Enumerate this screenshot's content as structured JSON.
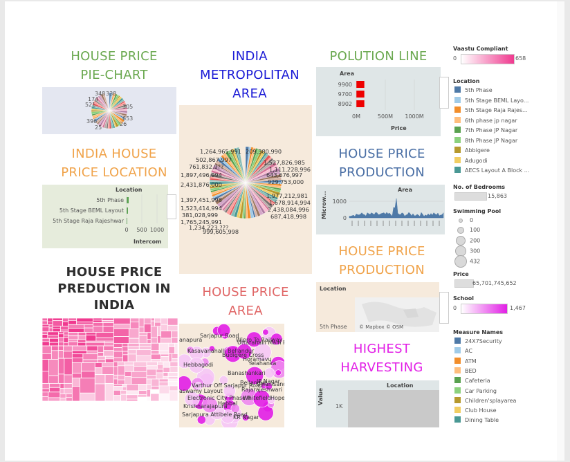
{
  "titles": {
    "pie": [
      "HOUSE PRICE",
      "PIE-CHART"
    ],
    "metro": [
      "INDIA",
      "METROPOLITAN",
      "AREA"
    ],
    "pollution": [
      "POLUTION LINE"
    ],
    "location": [
      "INDIA HOUSE",
      "PRICE LOCATION"
    ],
    "production1": [
      "HOUSE PRICE",
      "PRODUCTION"
    ],
    "production2": [
      "HOUSE PRICE",
      "PRODUCTION"
    ],
    "prediction": [
      "HOUSE PRICE",
      "PREDUCTION IN",
      "INDIA"
    ],
    "area": [
      "HOUSE PRICE",
      "AREA"
    ],
    "harvesting": [
      "HIGHEST",
      "HARVESTING"
    ]
  },
  "colors": {
    "title_green": "#6aa84f",
    "title_blue": "#1b1bd6",
    "title_orange": "#f0a34a",
    "title_steel": "#4a6fa5",
    "title_red": "#e06666",
    "title_magenta": "#e21ee6",
    "title_black": "#2d2d2d",
    "pink": "#f0398f",
    "magenta": "#e21ee6"
  },
  "small_pie": {
    "labels": [
      "348",
      "338",
      "174",
      "521",
      "305",
      "653",
      "396",
      "25",
      "26"
    ]
  },
  "metro_pie": {
    "labels": [
      "1,264,965,991",
      "502,867,997",
      "761,832,9??",
      "1,897,496,994",
      "2,431,876,000",
      "209,380,990",
      "1,527,826,985",
      "1,111,228,996",
      "643,676,997",
      "929,753,000",
      "1,977,212,981",
      "1,678,914,994",
      "2,438,084,996",
      "687,418,998",
      "1,397,451,998",
      "1,523,414,994",
      "381,028,999",
      "1,765,245,991",
      "1,234,223,???",
      "999,605,998"
    ]
  },
  "pollution": {
    "header": "Area",
    "rows": [
      "9900",
      "9700",
      "8902"
    ],
    "axis": [
      "0M",
      "500M",
      "1000M"
    ],
    "axis_title": "Price"
  },
  "location_chart": {
    "header": "Location",
    "rows": [
      "5th Phase",
      "5th Stage BEML Layout",
      "5th Stage Raja Rajeshwar"
    ],
    "axis": [
      "0",
      "500",
      "1000"
    ],
    "axis_title": "Intercom"
  },
  "production1": {
    "header": "Area",
    "y_label": "Microw...",
    "ticks": [
      "1000",
      "0"
    ]
  },
  "production2": {
    "header": "Location",
    "row": "5th Phase",
    "credit": "© Mapbox © OSM"
  },
  "area_bubbles": {
    "labels": [
      "Sarjapur Road",
      "Wipro To Railway Co",
      "anapura",
      "Uttarahalli Main Road",
      "Kasavanahalli",
      "Bellandur",
      "Budigere Cross",
      "Horamavu",
      "Yelahanka",
      "Hebbagodi",
      "Banashankari",
      "JP Nagar",
      "Varthur Off Sarjapur Road",
      "Bellandur",
      "Thanisandra",
      "Rajarajeshwari nagar",
      "Electronic City Phase II",
      "Whitefield",
      "Hope Farm",
      "Krishnarajapura",
      "Hebbal",
      "Sarjapura Attibele Road",
      "KR Nagar",
      "aswamy Layout"
    ]
  },
  "harvesting": {
    "header": "Location",
    "y_label": "Value",
    "tick": "1K"
  },
  "legends": {
    "vaastu": {
      "title": "Vaastu Compliant",
      "min": "0",
      "max": "658"
    },
    "location": {
      "title": "Location",
      "items": [
        {
          "label": "5th Phase",
          "color": "#4e79a7"
        },
        {
          "label": "5th Stage BEML Layo...",
          "color": "#a0cbe8"
        },
        {
          "label": "5th Stage Raja Rajes...",
          "color": "#f28e2b"
        },
        {
          "label": "6th phase jp nagar",
          "color": "#ffbe7d"
        },
        {
          "label": "7th Phase JP Nagar",
          "color": "#59a14f"
        },
        {
          "label": "8th Phase JP Nagar",
          "color": "#8cd17d"
        },
        {
          "label": "Abbigere",
          "color": "#b6992d"
        },
        {
          "label": "Adugodi",
          "color": "#f1ce63"
        },
        {
          "label": "AECS Layout A Block ...",
          "color": "#499894"
        }
      ]
    },
    "bedrooms": {
      "title": "No. of Bedrooms",
      "value": "15,863"
    },
    "pool": {
      "title": "Swimming Pool",
      "items": [
        "0",
        "100",
        "200",
        "300",
        "432"
      ]
    },
    "price": {
      "title": "Price",
      "value": "65,701,745,652"
    },
    "school": {
      "title": "School",
      "min": "0",
      "max": "1,467"
    },
    "measures": {
      "title": "Measure Names",
      "items": [
        {
          "label": "24X7Security",
          "color": "#4e79a7"
        },
        {
          "label": "AC",
          "color": "#a0cbe8"
        },
        {
          "label": "ATM",
          "color": "#f28e2b"
        },
        {
          "label": "BED",
          "color": "#ffbe7d"
        },
        {
          "label": "Cafeteria",
          "color": "#59a14f"
        },
        {
          "label": "Car Parking",
          "color": "#8cd17d"
        },
        {
          "label": "Children'splayarea",
          "color": "#b6992d"
        },
        {
          "label": "Club House",
          "color": "#f1ce63"
        },
        {
          "label": "Dining Table",
          "color": "#499894"
        }
      ]
    }
  },
  "chart_data": [
    {
      "type": "pie",
      "title": "HOUSE PRICE PIE-CHART",
      "slice_labels": [
        "348",
        "338",
        "174",
        "521",
        "305",
        "653",
        "396",
        "25",
        "26"
      ]
    },
    {
      "type": "pie",
      "title": "INDIA METROPOLITAN AREA"
    },
    {
      "type": "bar",
      "title": "POLUTION LINE",
      "categories": [
        "9900",
        "9700",
        "8902"
      ],
      "xlabel": "Price",
      "ylabel": "Area",
      "xlim": [
        0,
        1200000000
      ],
      "values": [
        140000000,
        140000000,
        140000000
      ]
    },
    {
      "type": "bar",
      "title": "INDIA HOUSE PRICE LOCATION",
      "categories": [
        "5th Phase",
        "5th Stage BEML Layout",
        "5th Stage Raja Rajeshwar"
      ],
      "xlabel": "Intercom",
      "ylabel": "Location",
      "values": [
        30,
        20,
        10
      ]
    },
    {
      "type": "bar",
      "title": "HOUSE PRICE PRODUCTION",
      "xlabel": "Area",
      "ylabel": "Microw...",
      "ylim": [
        0,
        1500
      ]
    },
    {
      "type": "heatmap",
      "title": "HOUSE PRICE PREDUCTION IN INDIA"
    },
    {
      "type": "scatter",
      "title": "HOUSE PRICE AREA"
    },
    {
      "type": "bar",
      "title": "HIGHEST HARVESTING",
      "ylabel": "Value",
      "xlabel": "Location"
    }
  ]
}
